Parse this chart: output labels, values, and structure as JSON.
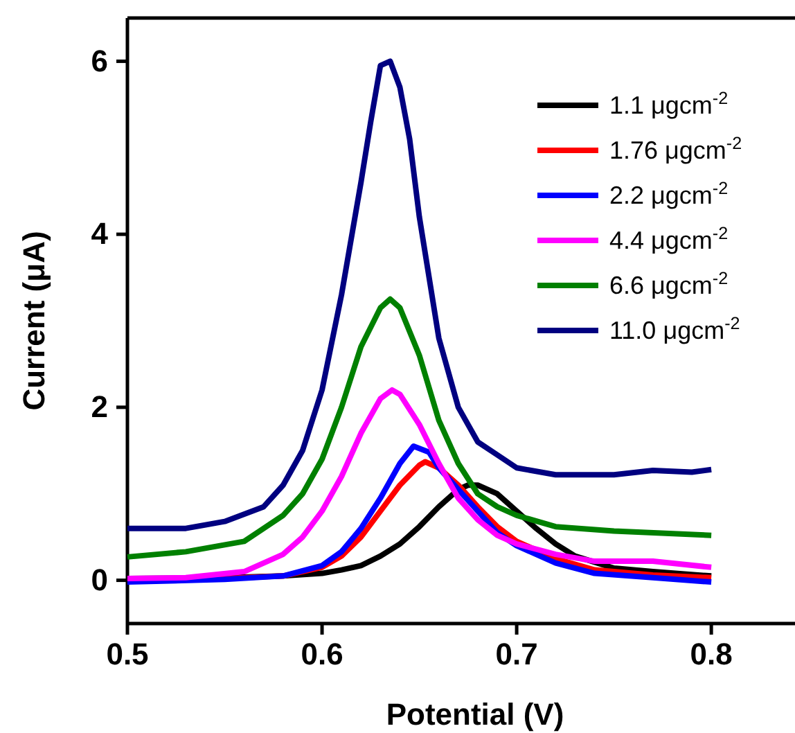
{
  "chart_data": {
    "type": "line",
    "xlabel": "Potential (V)",
    "ylabel": "Current (μA)",
    "xlim": [
      0.5,
      0.843
    ],
    "ylim": [
      -0.5,
      6.5
    ],
    "xticks": [
      0.5,
      0.6,
      0.7,
      0.8
    ],
    "yticks": [
      0,
      2,
      4,
      6
    ],
    "grid": false,
    "legend": "top right",
    "line_style": "solid",
    "marker": "none",
    "series": [
      {
        "name": "1.1 μgcm$^{-2}$",
        "color": "#000000",
        "x": [
          0.5,
          0.55,
          0.58,
          0.6,
          0.61,
          0.62,
          0.63,
          0.64,
          0.65,
          0.66,
          0.67,
          0.675,
          0.68,
          0.69,
          0.7,
          0.71,
          0.72,
          0.73,
          0.75,
          0.77,
          0.8
        ],
        "values": [
          0.02,
          0.03,
          0.05,
          0.08,
          0.12,
          0.17,
          0.28,
          0.42,
          0.62,
          0.85,
          1.05,
          1.1,
          1.1,
          1.0,
          0.8,
          0.6,
          0.42,
          0.28,
          0.14,
          0.1,
          0.05
        ]
      },
      {
        "name": "1.76 μgcm$^{-2}$",
        "color": "#ff0000",
        "x": [
          0.5,
          0.55,
          0.58,
          0.6,
          0.61,
          0.62,
          0.63,
          0.64,
          0.65,
          0.653,
          0.66,
          0.67,
          0.68,
          0.69,
          0.7,
          0.72,
          0.74,
          0.77,
          0.8
        ],
        "values": [
          0.0,
          0.02,
          0.05,
          0.15,
          0.28,
          0.5,
          0.8,
          1.1,
          1.33,
          1.37,
          1.3,
          1.1,
          0.85,
          0.62,
          0.45,
          0.25,
          0.12,
          0.06,
          0.03
        ]
      },
      {
        "name": "2.2 μgcm$^{-2}$",
        "color": "#0000ff",
        "x": [
          0.5,
          0.55,
          0.58,
          0.6,
          0.61,
          0.62,
          0.63,
          0.64,
          0.647,
          0.655,
          0.66,
          0.67,
          0.68,
          0.69,
          0.7,
          0.72,
          0.74,
          0.77,
          0.8
        ],
        "values": [
          -0.02,
          0.01,
          0.05,
          0.17,
          0.33,
          0.6,
          0.95,
          1.35,
          1.55,
          1.48,
          1.3,
          1.05,
          0.8,
          0.55,
          0.4,
          0.2,
          0.08,
          0.03,
          -0.02
        ]
      },
      {
        "name": "4.4 μgcm$^{-2}$",
        "color": "#ff00ff",
        "x": [
          0.5,
          0.53,
          0.56,
          0.58,
          0.59,
          0.6,
          0.61,
          0.62,
          0.63,
          0.636,
          0.64,
          0.65,
          0.66,
          0.67,
          0.68,
          0.69,
          0.7,
          0.72,
          0.74,
          0.77,
          0.8
        ],
        "values": [
          0.02,
          0.03,
          0.1,
          0.3,
          0.5,
          0.8,
          1.2,
          1.7,
          2.1,
          2.2,
          2.15,
          1.8,
          1.35,
          0.95,
          0.7,
          0.52,
          0.42,
          0.3,
          0.22,
          0.22,
          0.15
        ]
      },
      {
        "name": "6.6 μgcm$^{-2}$",
        "color": "#008000",
        "x": [
          0.5,
          0.53,
          0.56,
          0.58,
          0.59,
          0.6,
          0.61,
          0.62,
          0.63,
          0.635,
          0.64,
          0.65,
          0.66,
          0.67,
          0.68,
          0.69,
          0.7,
          0.72,
          0.75,
          0.8
        ],
        "values": [
          0.27,
          0.33,
          0.45,
          0.75,
          1.0,
          1.4,
          2.0,
          2.7,
          3.15,
          3.25,
          3.15,
          2.6,
          1.85,
          1.35,
          1.0,
          0.85,
          0.75,
          0.62,
          0.57,
          0.52
        ]
      },
      {
        "name": "11.0 μgcm$^{-2}$",
        "color": "#000080",
        "x": [
          0.5,
          0.53,
          0.55,
          0.57,
          0.58,
          0.59,
          0.6,
          0.61,
          0.62,
          0.625,
          0.63,
          0.635,
          0.64,
          0.645,
          0.65,
          0.66,
          0.67,
          0.68,
          0.69,
          0.7,
          0.72,
          0.75,
          0.77,
          0.79,
          0.8
        ],
        "values": [
          0.6,
          0.6,
          0.68,
          0.85,
          1.1,
          1.5,
          2.2,
          3.3,
          4.6,
          5.3,
          5.95,
          6.0,
          5.7,
          5.1,
          4.2,
          2.8,
          2.0,
          1.6,
          1.45,
          1.3,
          1.22,
          1.22,
          1.27,
          1.25,
          1.28
        ]
      }
    ]
  }
}
